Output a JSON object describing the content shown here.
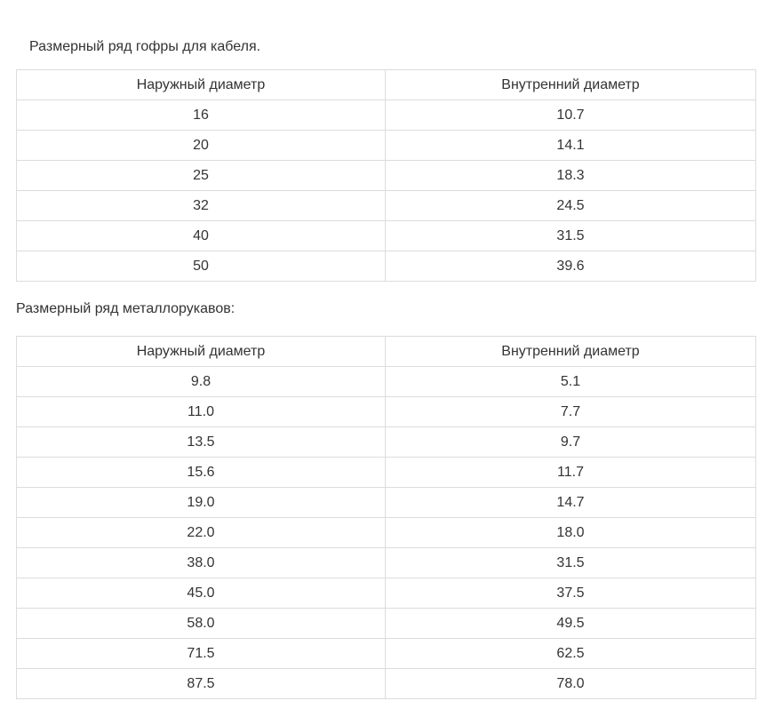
{
  "section1": {
    "caption": "Размерный ряд гофры для кабеля.",
    "headers": [
      "Наружный диаметр",
      "Внутренний диаметр"
    ],
    "rows": [
      [
        "16",
        "10.7"
      ],
      [
        "20",
        "14.1"
      ],
      [
        "25",
        "18.3"
      ],
      [
        "32",
        "24.5"
      ],
      [
        "40",
        "31.5"
      ],
      [
        "50",
        "39.6"
      ]
    ]
  },
  "section2": {
    "caption": "Размерный ряд металлорукавов:",
    "headers": [
      "Наружный диаметр",
      "Внутренний диаметр"
    ],
    "rows": [
      [
        "9.8",
        "5.1"
      ],
      [
        "11.0",
        "7.7"
      ],
      [
        "13.5",
        "9.7"
      ],
      [
        "15.6",
        "11.7"
      ],
      [
        "19.0",
        "14.7"
      ],
      [
        "22.0",
        "18.0"
      ],
      [
        "38.0",
        "31.5"
      ],
      [
        "45.0",
        "37.5"
      ],
      [
        "58.0",
        "49.5"
      ],
      [
        "71.5",
        "62.5"
      ],
      [
        "87.5",
        "78.0"
      ]
    ]
  }
}
